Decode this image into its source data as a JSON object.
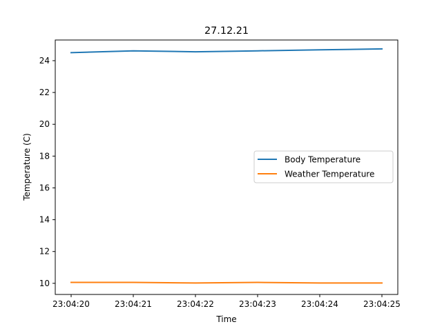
{
  "chart_data": {
    "type": "line",
    "title": "27.12.21",
    "xlabel": "Time",
    "ylabel": "Temperature (C)",
    "categories": [
      "23:04:20",
      "23:04:21",
      "23:04:22",
      "23:04:23",
      "23:04:24",
      "23:04:25"
    ],
    "yticks": [
      "10",
      "12",
      "14",
      "16",
      "18",
      "20",
      "22",
      "24"
    ],
    "ylim": [
      9.3,
      25.3
    ],
    "grid": false,
    "legend_position": "center-right",
    "series": [
      {
        "name": "Body Temperature",
        "color": "#1f77b4",
        "values": [
          24.5,
          24.62,
          24.56,
          24.62,
          24.68,
          24.74
        ]
      },
      {
        "name": "Weather Temperature",
        "color": "#ff7f0e",
        "values": [
          10.06,
          10.06,
          10.02,
          10.06,
          10.02,
          10.02
        ]
      }
    ]
  }
}
